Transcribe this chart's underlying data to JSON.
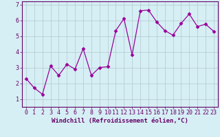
{
  "x": [
    0,
    1,
    2,
    3,
    4,
    5,
    6,
    7,
    8,
    9,
    10,
    11,
    12,
    13,
    14,
    15,
    16,
    17,
    18,
    19,
    20,
    21,
    22,
    23
  ],
  "y": [
    2.3,
    1.7,
    1.3,
    3.1,
    2.5,
    3.2,
    2.9,
    4.2,
    2.5,
    3.0,
    3.05,
    5.35,
    6.1,
    3.8,
    6.6,
    6.65,
    5.9,
    5.35,
    5.05,
    5.8,
    6.4,
    5.6,
    5.75,
    5.3
  ],
  "line_color": "#990099",
  "marker": "D",
  "marker_size": 2.5,
  "bg_color": "#d6eff5",
  "grid_color": "#b0c8cc",
  "xlabel": "Windchill (Refroidissement éolien,°C)",
  "xlim": [
    -0.5,
    23.5
  ],
  "ylim": [
    0.5,
    7.2
  ],
  "yticks": [
    1,
    2,
    3,
    4,
    5,
    6,
    7
  ],
  "xticks": [
    0,
    1,
    2,
    3,
    4,
    5,
    6,
    7,
    8,
    9,
    10,
    11,
    12,
    13,
    14,
    15,
    16,
    17,
    18,
    19,
    20,
    21,
    22,
    23
  ],
  "xlabel_fontsize": 6.5,
  "tick_fontsize": 6.0,
  "label_color": "#660066",
  "spine_color": "#660066",
  "linewidth": 0.9
}
